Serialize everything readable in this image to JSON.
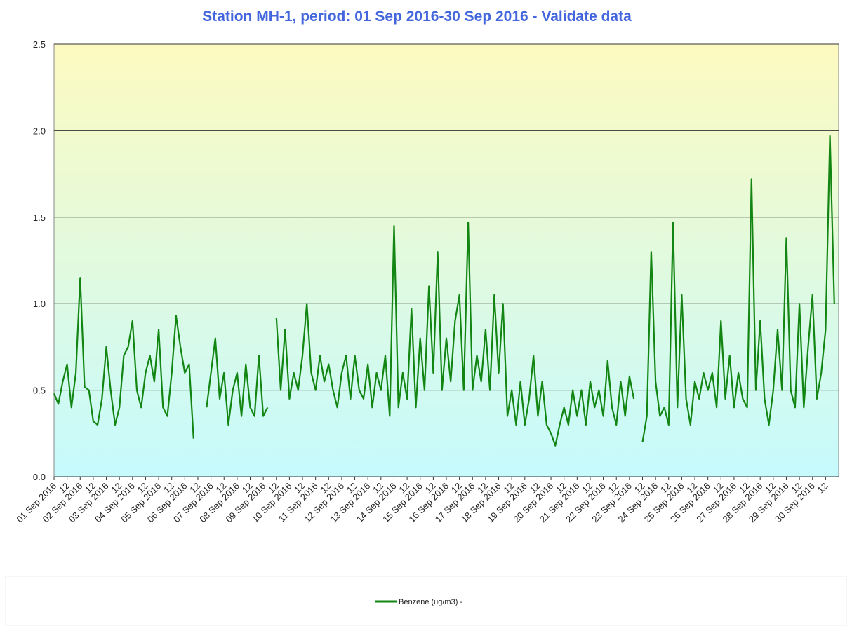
{
  "chart_data": {
    "type": "line",
    "title": "Station MH-1, period: 01 Sep 2016-30 Sep 2016 - Validate data",
    "xlim": [
      0,
      720
    ],
    "xticks": [
      {
        "value": 0,
        "label": "01 Sep 2016"
      },
      12,
      {
        "value": 24,
        "label": "02 Sep 2016"
      },
      {
        "value": 36,
        "label": "12"
      },
      {
        "value": 48,
        "label": "03 Sep 2016"
      },
      {
        "value": 60,
        "label": "12"
      },
      {
        "value": 72,
        "label": "04 Sep 2016"
      },
      {
        "value": 84,
        "label": "12"
      },
      {
        "value": 96,
        "label": "05 Sep 2016"
      },
      {
        "value": 108,
        "label": "12"
      },
      {
        "value": 120,
        "label": "06 Sep 2016"
      },
      {
        "value": 132,
        "label": "12"
      },
      {
        "value": 144,
        "label": "07 Sep 2016"
      },
      {
        "value": 156,
        "label": "12"
      },
      {
        "value": 168,
        "label": "08 Sep 2016"
      },
      {
        "value": 180,
        "label": "12"
      },
      {
        "value": 192,
        "label": "09 Sep 2016"
      },
      {
        "value": 204,
        "label": "12"
      },
      {
        "value": 216,
        "label": "10 Sep 2016"
      },
      {
        "value": 228,
        "label": "12"
      },
      {
        "value": 240,
        "label": "11 Sep 2016"
      },
      {
        "value": 252,
        "label": "12"
      },
      {
        "value": 264,
        "label": "12 Sep 2016"
      },
      {
        "value": 276,
        "label": "12"
      },
      {
        "value": 288,
        "label": "13 Sep 2016"
      },
      {
        "value": 300,
        "label": "12"
      },
      {
        "value": 312,
        "label": "14 Sep 2016"
      },
      {
        "value": 324,
        "label": "12"
      },
      {
        "value": 336,
        "label": "15 Sep 2016"
      },
      {
        "value": 348,
        "label": "12"
      },
      {
        "value": 360,
        "label": "16 Sep 2016"
      },
      {
        "value": 372,
        "label": "12"
      },
      {
        "value": 384,
        "label": "17 Sep 2016"
      },
      {
        "value": 396,
        "label": "12"
      },
      {
        "value": 408,
        "label": "18 Sep 2016"
      },
      {
        "value": 420,
        "label": "12"
      },
      {
        "value": 432,
        "label": "19 Sep 2016"
      },
      {
        "value": 444,
        "label": "12"
      },
      {
        "value": 456,
        "label": "20 Sep 2016"
      },
      {
        "value": 468,
        "label": "12"
      },
      {
        "value": 480,
        "label": "21 Sep 2016"
      },
      {
        "value": 492,
        "label": "12"
      },
      {
        "value": 504,
        "label": "22 Sep 2016"
      },
      {
        "value": 516,
        "label": "12"
      },
      {
        "value": 528,
        "label": "23 Sep 2016"
      },
      {
        "value": 540,
        "label": "12"
      },
      {
        "value": 552,
        "label": "24 Sep 2016"
      },
      {
        "value": 564,
        "label": "12"
      },
      {
        "value": 576,
        "label": "25 Sep 2016"
      },
      {
        "value": 588,
        "label": "12"
      },
      {
        "value": 600,
        "label": "26 Sep 2016"
      },
      {
        "value": 612,
        "label": "12"
      },
      {
        "value": 624,
        "label": "27 Sep 2016"
      },
      {
        "value": 636,
        "label": "12"
      },
      {
        "value": 648,
        "label": "28 Sep 2016"
      },
      {
        "value": 660,
        "label": "12"
      },
      {
        "value": 672,
        "label": "29 Sep 2016"
      },
      {
        "value": 684,
        "label": "12"
      },
      {
        "value": 696,
        "label": "30 Sep 2016"
      },
      {
        "value": 708,
        "label": "12"
      }
    ],
    "ylim": [
      0,
      2.5
    ],
    "yticks": [
      {
        "value": 0,
        "label": "0.0"
      },
      0.5,
      {
        "value": 1,
        "label": "1.0"
      },
      1.5,
      {
        "value": 2,
        "label": "2.0"
      },
      2.5
    ],
    "grid": true,
    "x": [
      0,
      4,
      8,
      12,
      16,
      20,
      24,
      28,
      32,
      36,
      40,
      44,
      48,
      52,
      56,
      60,
      64,
      68,
      72,
      76,
      80,
      84,
      88,
      92,
      96,
      100,
      104,
      108,
      112,
      116,
      120,
      124,
      128,
      132,
      136,
      140,
      144,
      148,
      152,
      156,
      160,
      164,
      168,
      172,
      176,
      180,
      184,
      188,
      192,
      196,
      200,
      204,
      208,
      212,
      216,
      220,
      224,
      228,
      232,
      236,
      240,
      244,
      248,
      252,
      256,
      260,
      264,
      268,
      272,
      276,
      280,
      284,
      288,
      292,
      296,
      300,
      304,
      308,
      312,
      316,
      320,
      324,
      328,
      332,
      336,
      340,
      344,
      348,
      352,
      356,
      360,
      364,
      368,
      372,
      376,
      380,
      384,
      388,
      392,
      396,
      400,
      404,
      408,
      412,
      416,
      420,
      424,
      428,
      432,
      436,
      440,
      444,
      448,
      452,
      456,
      460,
      464,
      468,
      472,
      476,
      480,
      484,
      488,
      492,
      496,
      500,
      504,
      508,
      512,
      516,
      520,
      524,
      528,
      532,
      536,
      540,
      544,
      548,
      552,
      556,
      560,
      564,
      568,
      572,
      576,
      580,
      584,
      588,
      592,
      596,
      600,
      604,
      608,
      612,
      616,
      620,
      624,
      628,
      632,
      636,
      640,
      644,
      648,
      652,
      656,
      660,
      664,
      668,
      672,
      676,
      680,
      684,
      688,
      692,
      696,
      700,
      704,
      708,
      712,
      716
    ],
    "series": [
      {
        "name": "Benzene (ug/m3) -",
        "color": "#128512",
        "values": [
          0.48,
          0.42,
          0.55,
          0.65,
          0.4,
          0.6,
          1.15,
          0.52,
          0.5,
          0.32,
          0.3,
          0.45,
          0.75,
          0.5,
          0.3,
          0.4,
          0.7,
          0.75,
          0.9,
          0.5,
          0.4,
          0.6,
          0.7,
          0.55,
          0.85,
          0.4,
          0.35,
          0.6,
          0.93,
          0.75,
          0.6,
          0.65,
          0.22,
          null,
          null,
          0.4,
          0.6,
          0.8,
          0.45,
          0.6,
          0.3,
          0.5,
          0.6,
          0.35,
          0.65,
          0.4,
          0.35,
          0.7,
          0.35,
          0.4,
          null,
          0.92,
          0.5,
          0.85,
          0.45,
          0.6,
          0.5,
          0.7,
          1.0,
          0.6,
          0.5,
          0.7,
          0.55,
          0.65,
          0.5,
          0.4,
          0.6,
          0.7,
          0.45,
          0.7,
          0.5,
          0.45,
          0.65,
          0.4,
          0.6,
          0.5,
          0.7,
          0.35,
          1.45,
          0.4,
          0.6,
          0.45,
          0.97,
          0.4,
          0.8,
          0.5,
          1.1,
          0.6,
          1.3,
          0.5,
          0.8,
          0.55,
          0.9,
          1.05,
          0.5,
          1.47,
          0.5,
          0.7,
          0.55,
          0.85,
          0.5,
          1.05,
          0.6,
          1.0,
          0.35,
          0.5,
          0.3,
          0.55,
          0.3,
          0.45,
          0.7,
          0.35,
          0.55,
          0.3,
          0.25,
          0.18,
          0.3,
          0.4,
          0.3,
          0.5,
          0.35,
          0.5,
          0.3,
          0.55,
          0.4,
          0.5,
          0.35,
          0.67,
          0.4,
          0.3,
          0.55,
          0.35,
          0.58,
          0.45,
          null,
          0.2,
          0.35,
          1.3,
          0.55,
          0.35,
          0.4,
          0.3,
          1.47,
          0.4,
          1.05,
          0.45,
          0.3,
          0.55,
          0.45,
          0.6,
          0.5,
          0.6,
          0.4,
          0.9,
          0.45,
          0.7,
          0.4,
          0.6,
          0.45,
          0.4,
          1.72,
          0.5,
          0.9,
          0.45,
          0.3,
          0.5,
          0.85,
          0.5,
          1.38,
          0.5,
          0.4,
          1.0,
          0.4,
          0.75,
          1.05,
          0.45,
          0.6,
          0.85,
          1.97,
          1.0
        ]
      }
    ]
  }
}
